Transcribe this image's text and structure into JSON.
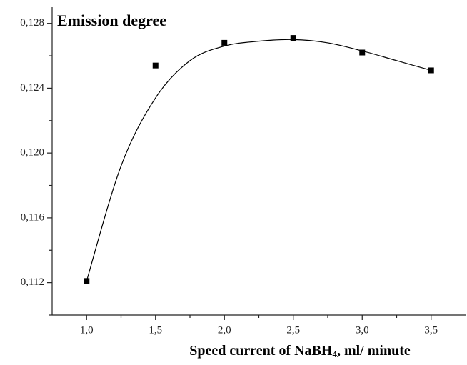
{
  "chart_data": {
    "type": "scatter",
    "title": "Emission degree",
    "xlabel": {
      "text": "Speed current of NaBH",
      "subscript": "4",
      "rest": ", ml/ minute"
    },
    "x": [
      1.0,
      1.5,
      2.0,
      2.5,
      3.0,
      3.5
    ],
    "series": [
      {
        "color": "#000000",
        "values": [
          0.1121,
          0.1254,
          0.1268,
          0.1271,
          0.1262,
          0.1251
        ]
      }
    ],
    "fit": {
      "color": "#000000",
      "x": [
        1.0,
        1.25,
        1.5,
        1.75,
        2.0,
        2.25,
        2.5,
        2.75,
        3.0,
        3.25,
        3.5
      ],
      "values": [
        0.1121,
        0.1192,
        0.1234,
        0.1257,
        0.1266,
        0.1269,
        0.127,
        0.1268,
        0.1263,
        0.1257,
        0.1251
      ]
    },
    "xlim": [
      0.75,
      3.75
    ],
    "xticks": [
      {
        "value": 1.0,
        "label": "1,0"
      },
      {
        "value": 1.5,
        "label": "1,5"
      },
      {
        "value": 2.0,
        "label": "2,0"
      },
      {
        "value": 2.5,
        "label": "2,5"
      },
      {
        "value": 3.0,
        "label": "3,0"
      },
      {
        "value": 3.5,
        "label": "3,5"
      }
    ],
    "xminorticks": [
      1.25,
      1.75,
      2.25,
      2.75,
      3.25
    ],
    "ylim": [
      0.11,
      0.129
    ],
    "yticks": [
      {
        "value": 0.112,
        "label": "0,112"
      },
      {
        "value": 0.116,
        "label": "0,116"
      },
      {
        "value": 0.12,
        "label": "0,120"
      },
      {
        "value": 0.124,
        "label": "0,124"
      },
      {
        "value": 0.128,
        "label": "0,128"
      }
    ],
    "yminorticks": [
      0.11,
      0.114,
      0.118,
      0.122,
      0.126
    ]
  }
}
